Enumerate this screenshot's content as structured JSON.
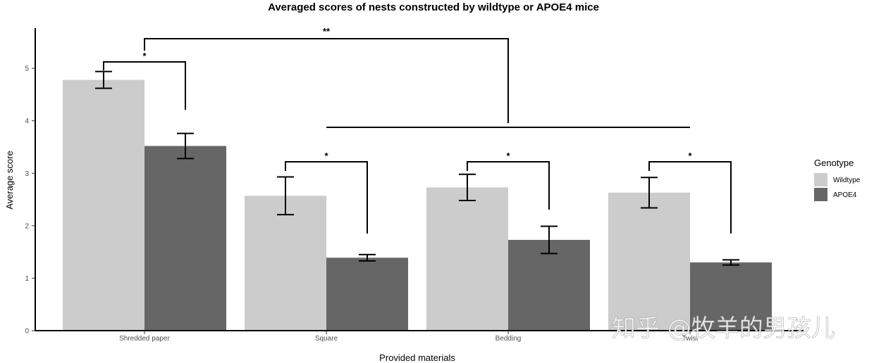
{
  "chart_data": {
    "type": "bar",
    "title": "Averaged scores of nests constructed by wildtype or APOE4 mice",
    "xlabel": "Provided materials",
    "ylabel": "Average score",
    "categories": [
      "Shredded paper",
      "Square",
      "Bedding",
      "Twist"
    ],
    "series": [
      {
        "name": "Wildtype",
        "color": "#cccccc",
        "values": [
          4.78,
          2.57,
          2.73,
          2.63
        ],
        "error": [
          0.16,
          0.36,
          0.25,
          0.29
        ]
      },
      {
        "name": "APOE4",
        "color": "#666666",
        "values": [
          3.52,
          1.39,
          1.73,
          1.3
        ],
        "error": [
          0.24,
          0.06,
          0.26,
          0.05
        ]
      }
    ],
    "ylim": [
      0,
      5.9
    ],
    "yticks": [
      0,
      1,
      2,
      3,
      4,
      5
    ],
    "grid": false,
    "legend": {
      "title": "Genotype",
      "position": "right"
    },
    "significance": [
      {
        "label": "*",
        "group": "Shredded paper",
        "from": "Wildtype",
        "to": "APOE4"
      },
      {
        "label": "*",
        "group": "Square",
        "from": "Wildtype",
        "to": "APOE4"
      },
      {
        "label": "*",
        "group": "Bedding",
        "from": "Wildtype",
        "to": "APOE4"
      },
      {
        "label": "*",
        "group": "Twist",
        "from": "Wildtype",
        "to": "APOE4"
      },
      {
        "label": "**",
        "from": "Shredded paper",
        "to": "Square, Bedding, Twist"
      }
    ]
  },
  "watermark": "知乎 @牧羊的男孩儿"
}
